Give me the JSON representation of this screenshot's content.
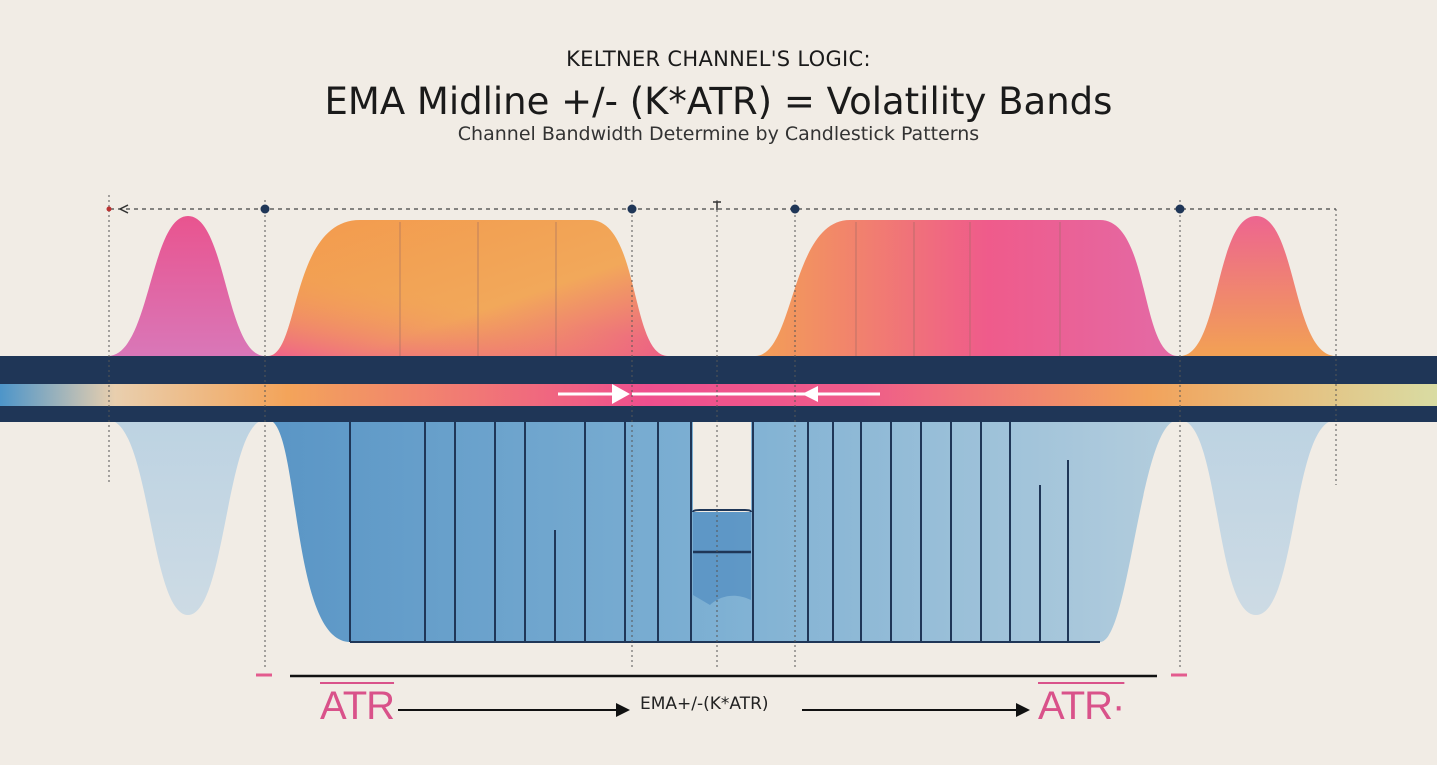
{
  "header": {
    "eyebrow": "KELTNER CHANNEL'S LOGIC:",
    "title": "EMA Midline +/- (K*ATR) = Volatility Bands",
    "subtitle": "Channel Bandwidth Determine by Candlestick Patterns"
  },
  "footer": {
    "atr_left": "ATR",
    "formula": "EMA+/-(K*ATR)",
    "atr_right": "ATR·"
  },
  "colors": {
    "background": "#f1ece5",
    "band_dark": "#1f3657",
    "pink": "#ec5f92",
    "orange": "#f3a252",
    "blue": "#4f8fc4",
    "atr_text": "#d9528a"
  }
}
